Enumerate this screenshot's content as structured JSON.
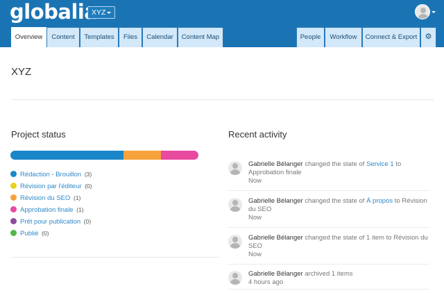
{
  "app": {
    "logo": "globalia",
    "project_selector": "XYZ"
  },
  "tabs_left": [
    {
      "label": "Overview"
    },
    {
      "label": "Content"
    },
    {
      "label": "Templates"
    },
    {
      "label": "Files"
    },
    {
      "label": "Calendar"
    },
    {
      "label": "Content Map"
    }
  ],
  "tabs_right": [
    {
      "label": "People"
    },
    {
      "label": "Workflow"
    },
    {
      "label": "Connect & Export"
    }
  ],
  "settings_icon": "gear-icon",
  "page": {
    "title": "XYZ"
  },
  "project_status": {
    "title": "Project status",
    "segments": [
      {
        "name": "Rédaction - Brouillon",
        "count": 3,
        "color": "#1a87c8"
      },
      {
        "name": "Révision par l'éditeur",
        "count": 0,
        "color": "#e8d21a"
      },
      {
        "name": "Révision du SEO",
        "count": 1,
        "color": "#f5a23a"
      },
      {
        "name": "Approbation finale",
        "count": 1,
        "color": "#e84aa0"
      },
      {
        "name": "Prêt pour publication",
        "count": 0,
        "color": "#8e4a9e"
      },
      {
        "name": "Publié",
        "count": 0,
        "color": "#4fb848"
      }
    ],
    "legend": [
      {
        "label": "Rédaction - Brouillon",
        "count": "(3)",
        "color": "#1a87c8"
      },
      {
        "label": "Révision par l'éditeur",
        "count": "(0)",
        "color": "#e8d21a"
      },
      {
        "label": "Révision du SEO",
        "count": "(1)",
        "color": "#f5a23a"
      },
      {
        "label": "Approbation finale",
        "count": "(1)",
        "color": "#e84aa0"
      },
      {
        "label": "Prêt pour publication",
        "count": "(0)",
        "color": "#8e4a9e"
      },
      {
        "label": "Publié",
        "count": "(0)",
        "color": "#4fb848"
      }
    ]
  },
  "recent_activity": {
    "title": "Recent activity",
    "items": [
      {
        "user": "Gabrielle Bélanger",
        "pre": " changed the state of ",
        "link": "Service 1",
        "post": " to Approbation finale",
        "time": "Now"
      },
      {
        "user": "Gabrielle Bélanger",
        "pre": " changed the state of ",
        "link": "À propos",
        "post": " to Révision du SEO",
        "time": "Now"
      },
      {
        "user": "Gabrielle Bélanger",
        "pre": " changed the state of 1 item to Révision du SEO",
        "link": "",
        "post": "",
        "time": "Now"
      },
      {
        "user": "Gabrielle Bélanger",
        "pre": " archived 1 items",
        "link": "",
        "post": "",
        "time": "4 hours ago"
      }
    ]
  }
}
